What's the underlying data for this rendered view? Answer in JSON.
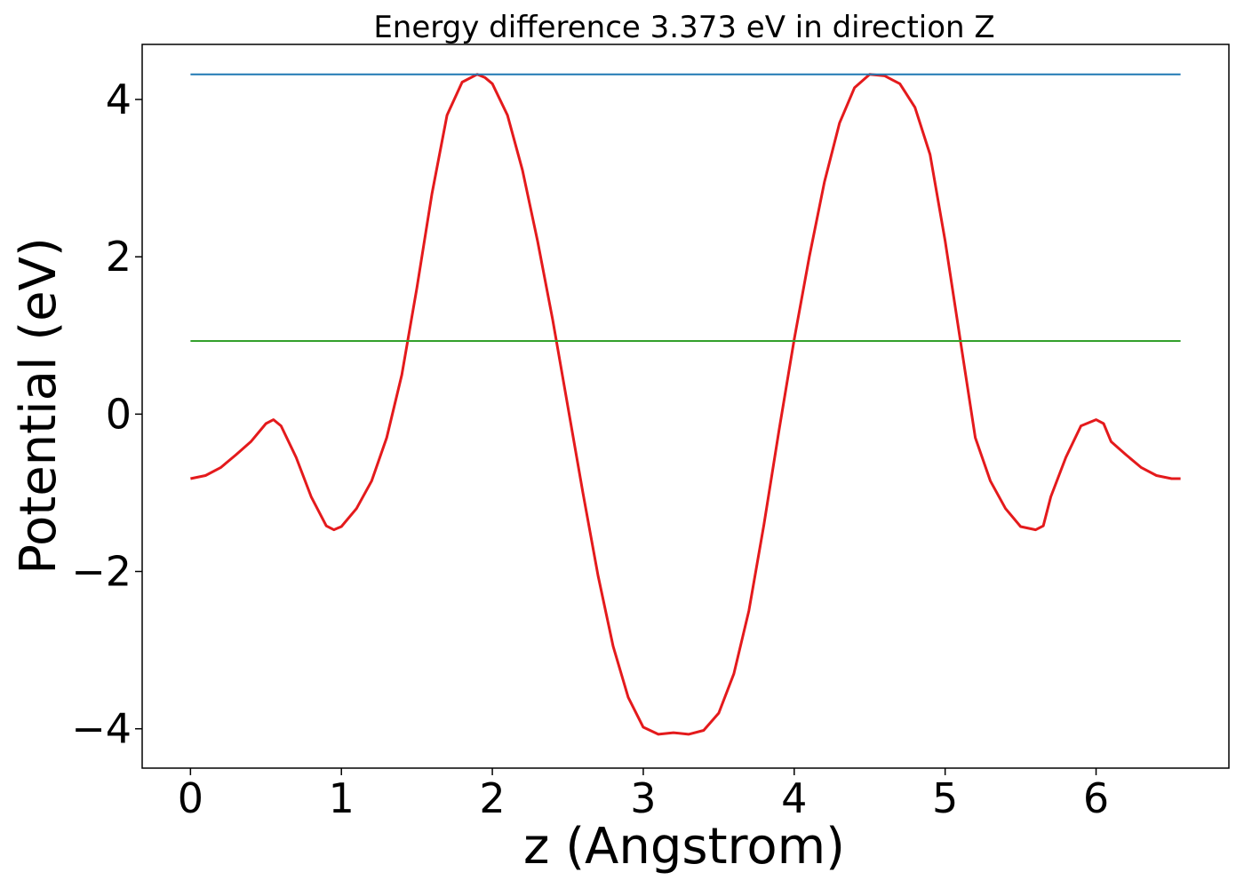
{
  "chart_data": {
    "type": "line",
    "title": "Energy difference 3.373 eV in direction Z",
    "xlabel": "z (Angstrom)",
    "ylabel": "Potential (eV)",
    "xlim": [
      -0.32,
      6.88
    ],
    "ylim": [
      -4.5,
      4.7
    ],
    "xticks": [
      {
        "value": 0,
        "label": "0"
      },
      {
        "value": 1,
        "label": "1"
      },
      {
        "value": 2,
        "label": "2"
      },
      {
        "value": 3,
        "label": "3"
      },
      {
        "value": 4,
        "label": "4"
      },
      {
        "value": 5,
        "label": "5"
      },
      {
        "value": 6,
        "label": "6"
      }
    ],
    "yticks": [
      {
        "value": 4,
        "label": "4"
      },
      {
        "value": 2,
        "label": "2"
      },
      {
        "value": 0,
        "label": "0"
      },
      {
        "value": -2,
        "label": "−2"
      },
      {
        "value": -4,
        "label": "−4"
      }
    ],
    "grid": false,
    "series": [
      {
        "color": "#e41a1c",
        "x": [
          0,
          0.1,
          0.2,
          0.3,
          0.4,
          0.5,
          0.55,
          0.6,
          0.7,
          0.8,
          0.9,
          0.95,
          1.0,
          1.1,
          1.2,
          1.3,
          1.4,
          1.5,
          1.6,
          1.7,
          1.8,
          1.9,
          1.95,
          2.0,
          2.1,
          2.2,
          2.3,
          2.4,
          2.5,
          2.6,
          2.7,
          2.8,
          2.9,
          3.0,
          3.1,
          3.2,
          3.3,
          3.4,
          3.5,
          3.6,
          3.7,
          3.8,
          3.9,
          4.0,
          4.1,
          4.2,
          4.3,
          4.4,
          4.5,
          4.6,
          4.65,
          4.7,
          4.8,
          4.9,
          5.0,
          5.1,
          5.2,
          5.3,
          5.4,
          5.5,
          5.6,
          5.65,
          5.7,
          5.8,
          5.9,
          6.0,
          6.05,
          6.1,
          6.2,
          6.3,
          6.4,
          6.5,
          6.56
        ],
        "y": [
          -0.82,
          -0.78,
          -0.68,
          -0.52,
          -0.35,
          -0.12,
          -0.07,
          -0.15,
          -0.55,
          -1.05,
          -1.42,
          -1.47,
          -1.43,
          -1.2,
          -0.85,
          -0.3,
          0.5,
          1.6,
          2.8,
          3.8,
          4.22,
          4.32,
          4.28,
          4.2,
          3.8,
          3.1,
          2.2,
          1.2,
          0.1,
          -1.0,
          -2.05,
          -2.95,
          -3.6,
          -3.98,
          -4.07,
          -4.05,
          -4.07,
          -4.02,
          -3.8,
          -3.3,
          -2.5,
          -1.4,
          -0.2,
          0.95,
          2.0,
          2.95,
          3.7,
          4.15,
          4.32,
          4.3,
          4.25,
          4.2,
          3.9,
          3.3,
          2.2,
          0.95,
          -0.3,
          -0.85,
          -1.2,
          -1.43,
          -1.47,
          -1.42,
          -1.05,
          -0.55,
          -0.15,
          -0.07,
          -0.12,
          -0.35,
          -0.52,
          -0.68,
          -0.78,
          -0.82,
          -0.82
        ]
      },
      {
        "color": "#1f78b4",
        "x": [
          0,
          6.56
        ],
        "y": [
          4.32,
          4.32
        ]
      },
      {
        "color": "#33a02c",
        "x": [
          0,
          6.56
        ],
        "y": [
          0.93,
          0.93
        ]
      }
    ]
  }
}
